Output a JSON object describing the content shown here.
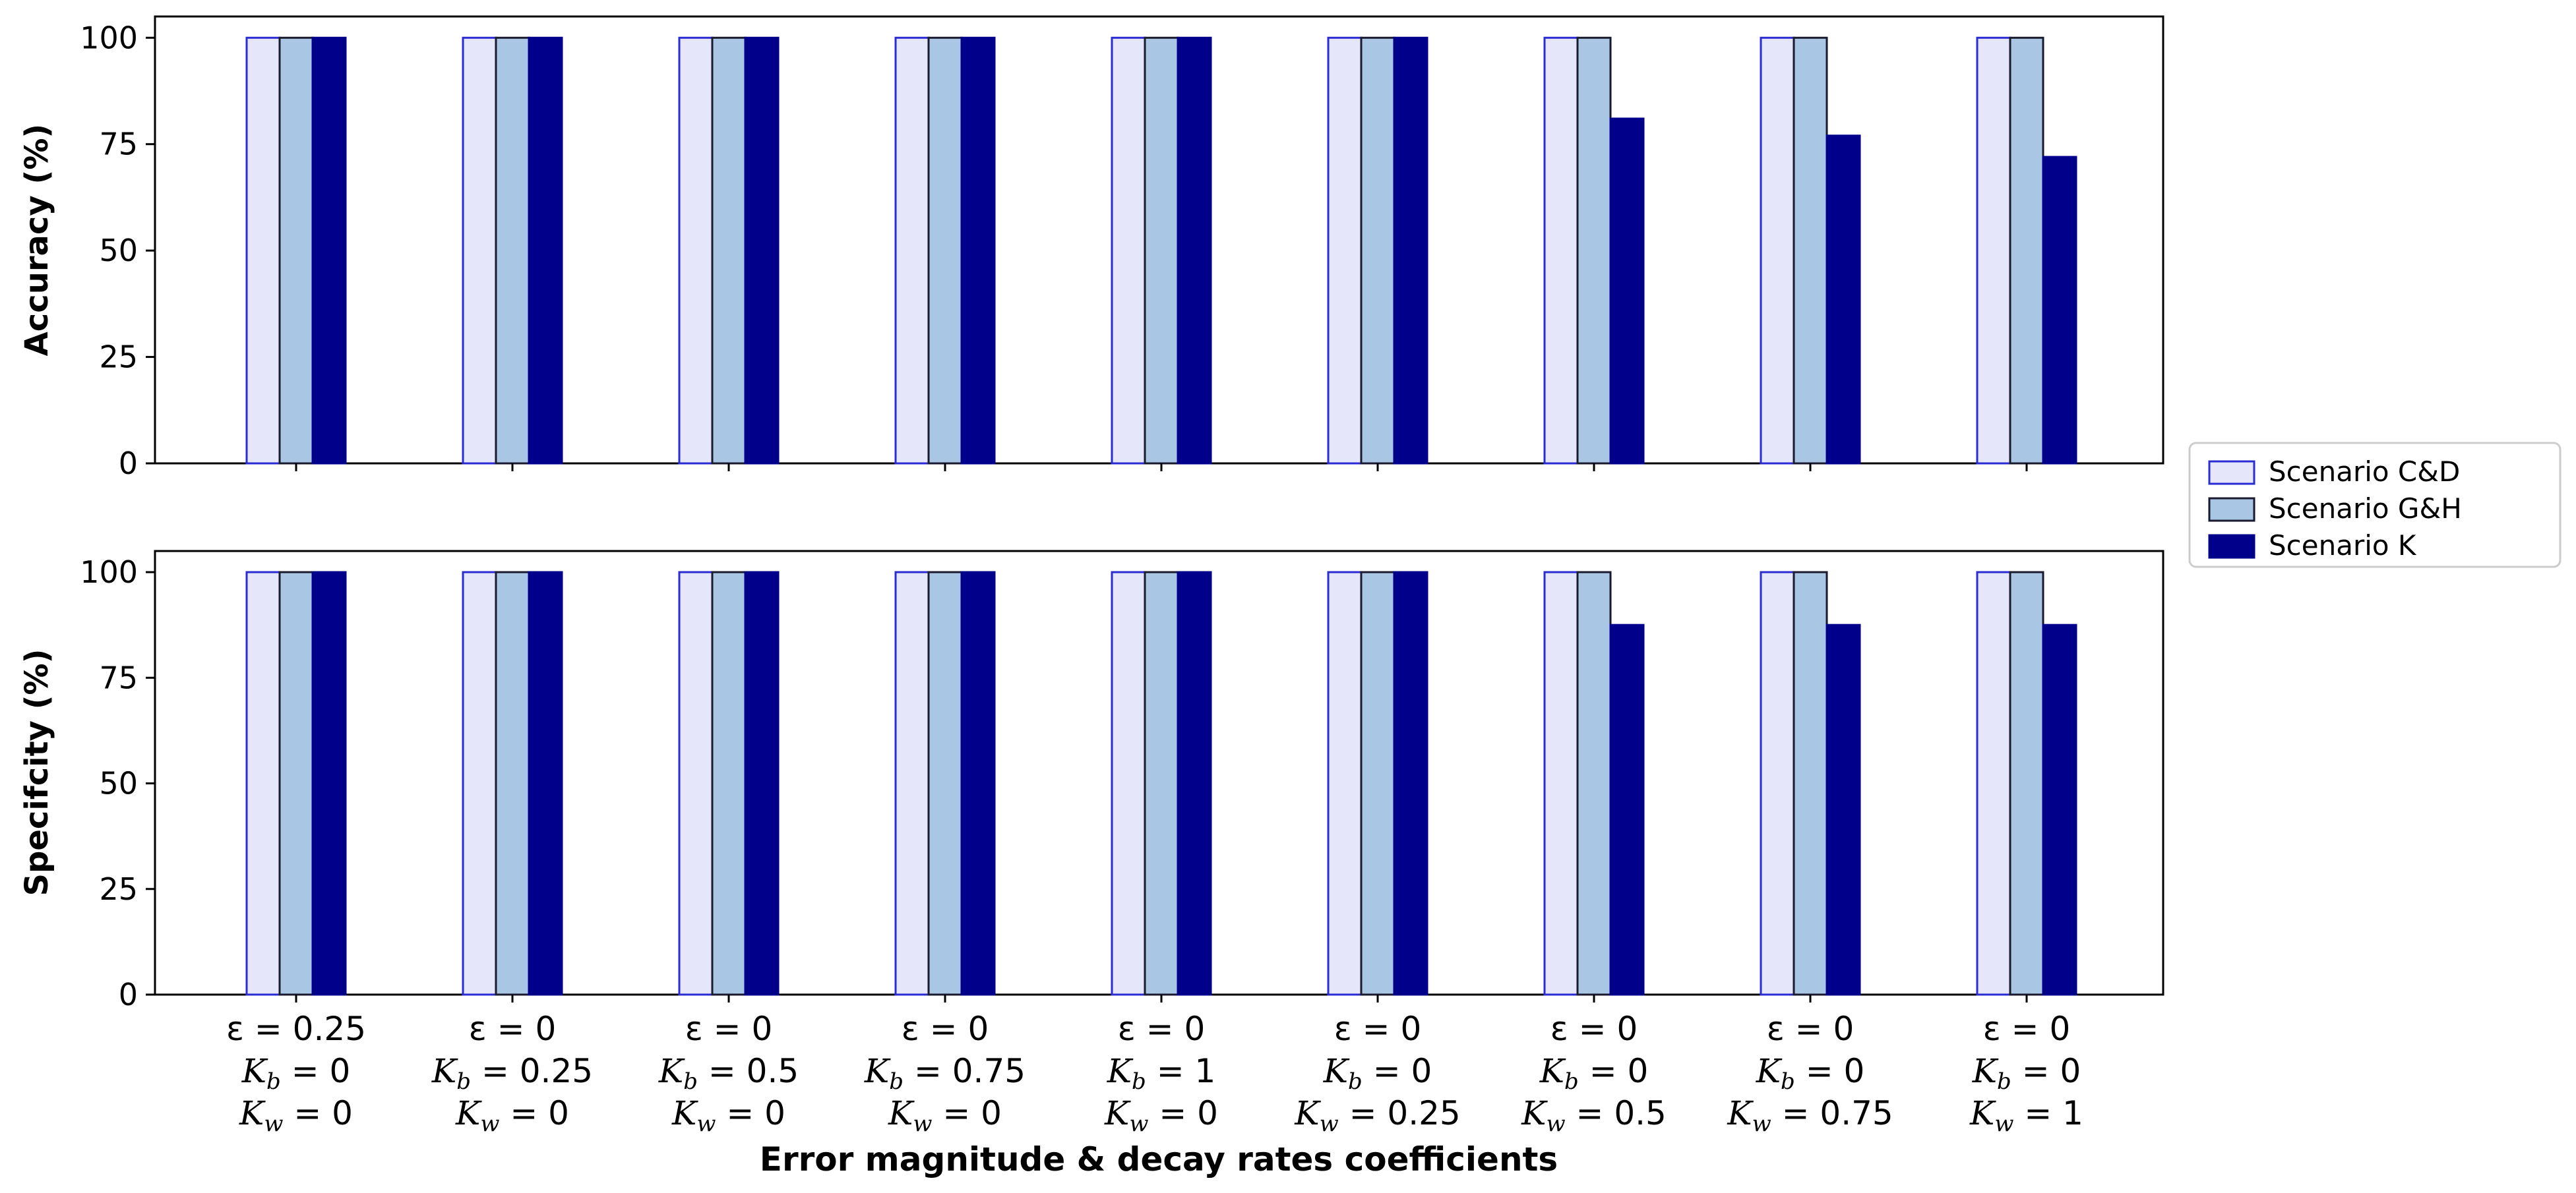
{
  "chart_data": [
    {
      "type": "bar",
      "ylabel": "Accuracy (%)",
      "ylim": [
        0,
        105
      ],
      "yticks": [
        "0",
        "25",
        "50",
        "75",
        "100"
      ],
      "categories": [
        "c1",
        "c2",
        "c3",
        "c4",
        "c5",
        "c6",
        "c7",
        "c8",
        "c9"
      ],
      "series": [
        {
          "name": "Scenario C&D",
          "values": [
            100,
            100,
            100,
            100,
            100,
            100,
            100,
            100,
            100
          ]
        },
        {
          "name": "Scenario G&H",
          "values": [
            100,
            100,
            100,
            100,
            100,
            100,
            100,
            100,
            100
          ]
        },
        {
          "name": "Scenario K",
          "values": [
            100,
            100,
            100,
            100,
            100,
            100,
            81,
            77,
            72
          ]
        }
      ]
    },
    {
      "type": "bar",
      "ylabel": "Specifcity (%)",
      "ylim": [
        0,
        105
      ],
      "yticks": [
        "0",
        "25",
        "50",
        "75",
        "100"
      ],
      "categories": [
        "c1",
        "c2",
        "c3",
        "c4",
        "c5",
        "c6",
        "c7",
        "c8",
        "c9"
      ],
      "series": [
        {
          "name": "Scenario C&D",
          "values": [
            100,
            100,
            100,
            100,
            100,
            100,
            100,
            100,
            100
          ]
        },
        {
          "name": "Scenario G&H",
          "values": [
            100,
            100,
            100,
            100,
            100,
            100,
            100,
            100,
            100
          ]
        },
        {
          "name": "Scenario K",
          "values": [
            100,
            100,
            100,
            100,
            100,
            100,
            87.5,
            87.5,
            87.5
          ]
        }
      ]
    }
  ],
  "xlabel": "Error magnitude & decay rates coefficients",
  "x_tick_labels": [
    {
      "eps": "ε = 0.25",
      "kb": "0",
      "kw": "0"
    },
    {
      "eps": "ε = 0",
      "kb": "0.25",
      "kw": "0"
    },
    {
      "eps": "ε = 0",
      "kb": "0.5",
      "kw": "0"
    },
    {
      "eps": "ε = 0",
      "kb": "0.75",
      "kw": "0"
    },
    {
      "eps": "ε = 0",
      "kb": "1",
      "kw": "0"
    },
    {
      "eps": "ε = 0",
      "kb": "0",
      "kw": "0.25"
    },
    {
      "eps": "ε = 0",
      "kb": "0",
      "kw": "0.5"
    },
    {
      "eps": "ε = 0",
      "kb": "0",
      "kw": "0.75"
    },
    {
      "eps": "ε = 0",
      "kb": "0",
      "kw": "1"
    }
  ],
  "symbols": {
    "kb_symbol": "K",
    "kb_sub": "b",
    "kw_symbol": "K",
    "kw_sub": "w",
    "equals": " = "
  },
  "legend": {
    "location": "center-right",
    "entries": [
      "Scenario C&D",
      "Scenario G&H",
      "Scenario K"
    ]
  },
  "colors": {
    "series_fill": [
      "#e6e6fa",
      "#a9c6e4",
      "#00008b"
    ],
    "series_edge": [
      "#2b2bd4",
      "#1a1a2e",
      "#00008b"
    ],
    "axis": "#000000"
  }
}
